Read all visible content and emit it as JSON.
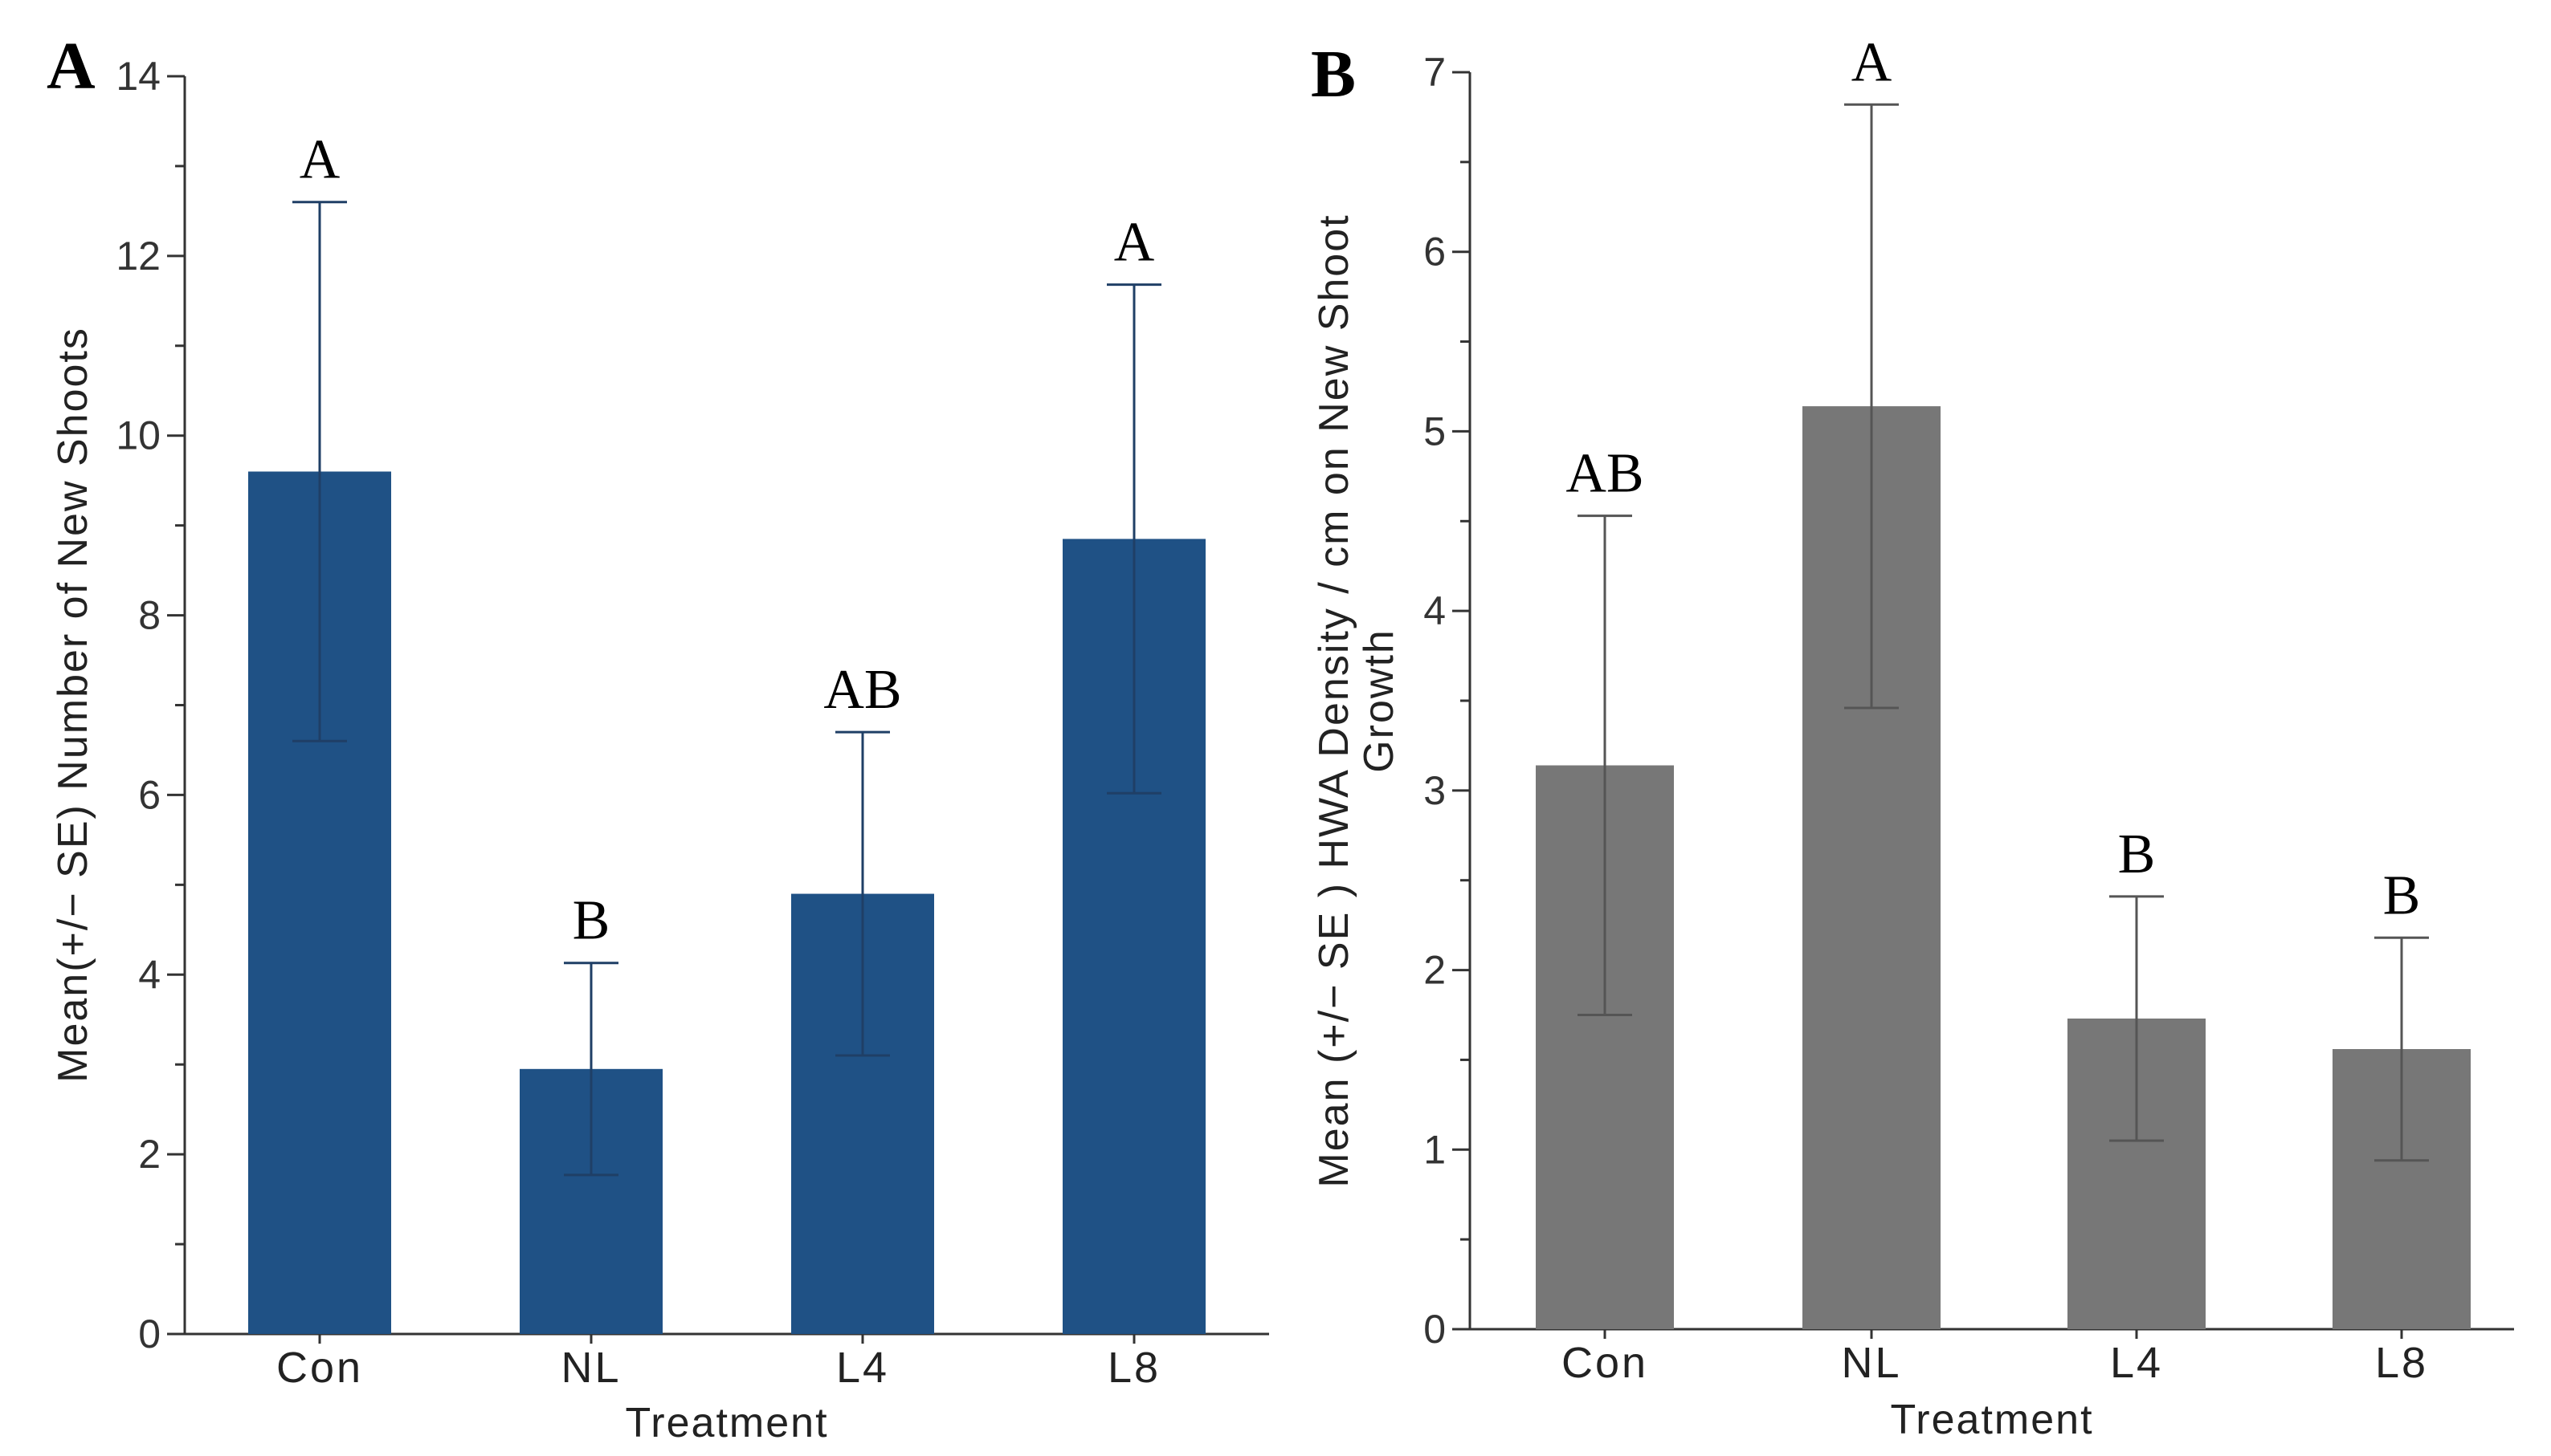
{
  "chart_data": [
    {
      "type": "bar",
      "panel": "A",
      "categories": [
        "Con",
        "NL",
        "L4",
        "L8"
      ],
      "values": [
        9.6,
        2.95,
        4.9,
        8.85
      ],
      "errors": [
        3.0,
        1.18,
        1.8,
        2.83
      ],
      "significance": [
        "A",
        "B",
        "AB",
        "A"
      ],
      "xlabel": "Treatment",
      "ylabel": "Mean(+/− SE) Number of New Shoots",
      "ylim": [
        0,
        14
      ],
      "yticks": [
        0,
        2,
        4,
        6,
        8,
        10,
        12,
        14
      ],
      "bar_color": "#1f5185",
      "error_color": "#1f3f66",
      "grid": false
    },
    {
      "type": "bar",
      "panel": "B",
      "categories": [
        "Con",
        "NL",
        "L4",
        "L8"
      ],
      "values": [
        3.14,
        5.14,
        1.73,
        1.56
      ],
      "errors": [
        1.39,
        1.68,
        0.68,
        0.62
      ],
      "significance": [
        "AB",
        "A",
        "B",
        "B"
      ],
      "xlabel": "Treatment",
      "ylabel": [
        "Mean (+/− SE ) HWA Density / cm on New Shoot",
        "Growth"
      ],
      "ylim": [
        0,
        7
      ],
      "yticks": [
        0,
        1,
        2,
        3,
        4,
        5,
        6,
        7
      ],
      "bar_color": "#777777",
      "error_color": "#555555",
      "grid": false
    }
  ]
}
